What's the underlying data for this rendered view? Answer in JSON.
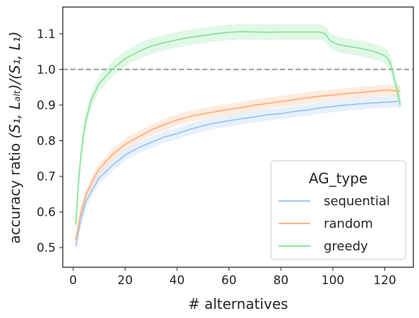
{
  "chart_data": {
    "type": "line",
    "xlabel": "# alternatives",
    "ylabel_main": "accuracy ratio ",
    "ylabel_math": "(S₁, Lₐₗₜ)/(S₁, L₁)",
    "xlim": [
      -4,
      131
    ],
    "ylim": [
      0.445,
      1.175
    ],
    "xticks": [
      0,
      20,
      40,
      60,
      80,
      100,
      120
    ],
    "yticks": [
      0.5,
      0.6,
      0.7,
      0.8,
      0.9,
      1.0,
      1.1
    ],
    "ytick_labels": [
      "0.5",
      "0.6",
      "0.7",
      "0.8",
      "0.9",
      "1.0",
      "1.1"
    ],
    "reference_line": {
      "y": 1.0,
      "style": "dashed",
      "color": "#888888"
    },
    "grid": false,
    "legend": {
      "title": "AG_type",
      "placement": "lower-right"
    },
    "series": [
      {
        "name": "sequential",
        "color": "#a1c9f4",
        "band_width": 0.016,
        "points": [
          [
            1,
            0.505
          ],
          [
            3,
            0.58
          ],
          [
            5,
            0.63
          ],
          [
            8,
            0.67
          ],
          [
            10,
            0.695
          ],
          [
            15,
            0.73
          ],
          [
            20,
            0.76
          ],
          [
            25,
            0.78
          ],
          [
            30,
            0.795
          ],
          [
            35,
            0.81
          ],
          [
            40,
            0.82
          ],
          [
            45,
            0.832
          ],
          [
            50,
            0.842
          ],
          [
            55,
            0.85
          ],
          [
            60,
            0.856
          ],
          [
            65,
            0.862
          ],
          [
            70,
            0.867
          ],
          [
            75,
            0.873
          ],
          [
            80,
            0.876
          ],
          [
            85,
            0.882
          ],
          [
            90,
            0.886
          ],
          [
            95,
            0.892
          ],
          [
            100,
            0.896
          ],
          [
            105,
            0.9
          ],
          [
            110,
            0.903
          ],
          [
            115,
            0.906
          ],
          [
            120,
            0.908
          ],
          [
            125,
            0.91
          ],
          [
            126,
            0.91
          ]
        ]
      },
      {
        "name": "random",
        "color": "#ffb482",
        "band_width": 0.016,
        "points": [
          [
            1,
            0.52
          ],
          [
            3,
            0.6
          ],
          [
            5,
            0.65
          ],
          [
            8,
            0.695
          ],
          [
            10,
            0.72
          ],
          [
            15,
            0.76
          ],
          [
            20,
            0.79
          ],
          [
            25,
            0.81
          ],
          [
            30,
            0.83
          ],
          [
            35,
            0.845
          ],
          [
            40,
            0.858
          ],
          [
            45,
            0.868
          ],
          [
            50,
            0.875
          ],
          [
            55,
            0.882
          ],
          [
            60,
            0.888
          ],
          [
            65,
            0.893
          ],
          [
            70,
            0.9
          ],
          [
            75,
            0.905
          ],
          [
            80,
            0.91
          ],
          [
            85,
            0.915
          ],
          [
            90,
            0.92
          ],
          [
            95,
            0.925
          ],
          [
            100,
            0.928
          ],
          [
            105,
            0.932
          ],
          [
            110,
            0.935
          ],
          [
            115,
            0.938
          ],
          [
            120,
            0.942
          ],
          [
            125,
            0.94
          ],
          [
            126,
            0.94
          ]
        ]
      },
      {
        "name": "greedy",
        "color": "#8de5a1",
        "band_width": 0.022,
        "points": [
          [
            1,
            0.565
          ],
          [
            2,
            0.68
          ],
          [
            3,
            0.76
          ],
          [
            4,
            0.82
          ],
          [
            5,
            0.86
          ],
          [
            7,
            0.915
          ],
          [
            10,
            0.96
          ],
          [
            15,
            1.0
          ],
          [
            20,
            1.03
          ],
          [
            25,
            1.05
          ],
          [
            30,
            1.065
          ],
          [
            35,
            1.075
          ],
          [
            40,
            1.083
          ],
          [
            45,
            1.09
          ],
          [
            50,
            1.095
          ],
          [
            55,
            1.1
          ],
          [
            60,
            1.104
          ],
          [
            65,
            1.106
          ],
          [
            70,
            1.105
          ],
          [
            75,
            1.104
          ],
          [
            80,
            1.105
          ],
          [
            85,
            1.105
          ],
          [
            90,
            1.105
          ],
          [
            95,
            1.105
          ],
          [
            97,
            1.1
          ],
          [
            99,
            1.08
          ],
          [
            102,
            1.07
          ],
          [
            105,
            1.066
          ],
          [
            110,
            1.06
          ],
          [
            115,
            1.052
          ],
          [
            118,
            1.045
          ],
          [
            120,
            1.038
          ],
          [
            121,
            1.032
          ],
          [
            122,
            1.02
          ],
          [
            123,
            0.995
          ],
          [
            124,
            0.965
          ],
          [
            125,
            0.935
          ],
          [
            126,
            0.9
          ]
        ]
      }
    ]
  }
}
